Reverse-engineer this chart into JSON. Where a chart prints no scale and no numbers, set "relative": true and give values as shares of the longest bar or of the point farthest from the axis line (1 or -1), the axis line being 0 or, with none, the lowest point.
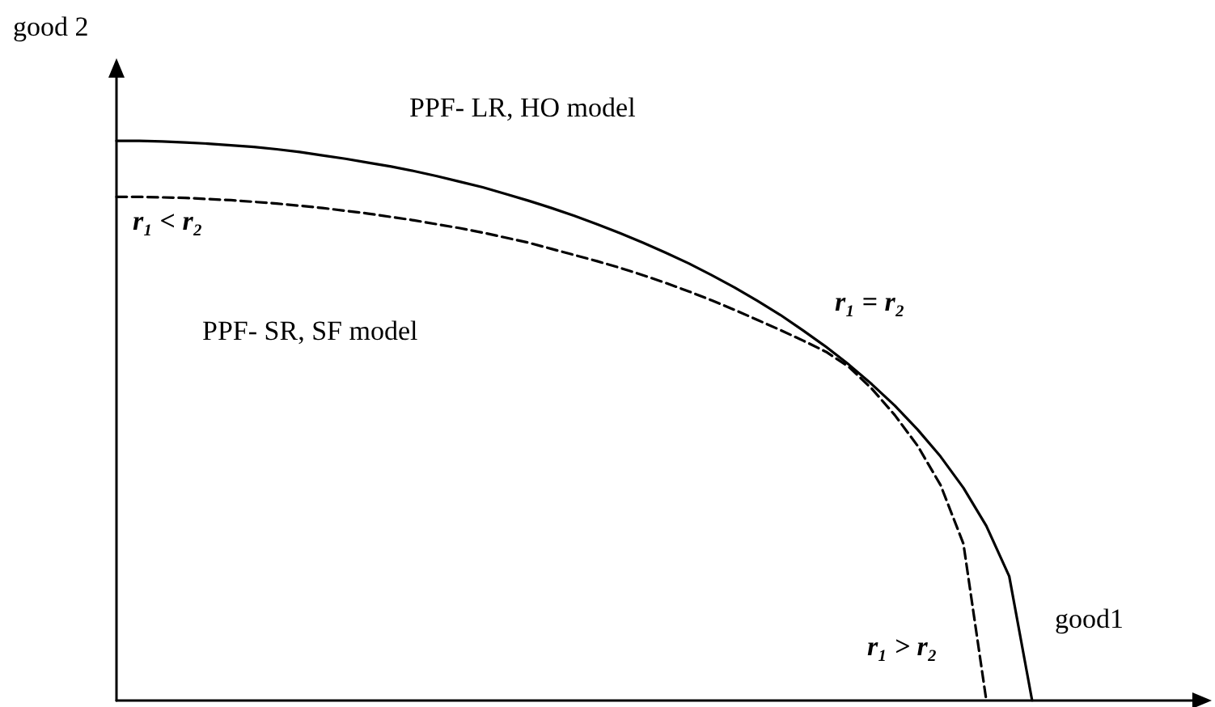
{
  "chart_data": {
    "type": "line",
    "relative": true,
    "xlabel": "good1",
    "ylabel": "good 2",
    "tick_labels": false,
    "marker": "none",
    "grid": false,
    "categories": [
      null,
      null,
      null,
      null,
      null,
      null,
      null,
      null,
      null,
      null,
      null,
      null,
      null,
      null,
      null,
      null,
      null,
      null,
      null,
      null,
      null,
      null,
      null,
      null,
      null,
      null,
      null,
      null,
      null,
      null,
      null,
      null,
      null,
      null,
      null,
      null,
      null,
      null,
      null,
      null,
      null,
      null,
      null,
      null,
      null,
      null,
      null,
      null
    ],
    "series": [
      {
        "color": "#000000",
        "line_style": "solid",
        "values": [
          1,
          1,
          0.999,
          0.997,
          0.995,
          0.992,
          0.989,
          0.985,
          0.98,
          0.974,
          0.968,
          0.961,
          0.954,
          0.946,
          0.937,
          0.927,
          0.917,
          0.905,
          0.893,
          0.88,
          0.866,
          0.851,
          0.835,
          0.818,
          0.8,
          0.781,
          0.76,
          0.738,
          0.714,
          0.689,
          0.661,
          0.632,
          0.6,
          0.565,
          0.527,
          0.484,
          0.436,
          0.38,
          0.312,
          0.222,
          0,
          null,
          null,
          null,
          null,
          null,
          null,
          null
        ]
      },
      {
        "color": "#000000",
        "line_style": "dashed",
        "values": [
          0.9,
          0.9,
          0.899,
          0.898,
          0.896,
          0.894,
          0.891,
          0.888,
          0.884,
          0.88,
          0.875,
          0.87,
          0.864,
          0.858,
          0.851,
          0.844,
          0.836,
          0.827,
          0.818,
          0.807,
          0.796,
          0.785,
          0.773,
          0.76,
          0.746,
          0.731,
          0.715,
          0.698,
          0.68,
          0.662,
          0.643,
          0.623,
          0.596,
          0.557,
          0.51,
          0.455,
          0.385,
          0.28,
          0,
          null,
          null,
          null,
          null,
          null,
          null,
          null,
          null,
          null
        ]
      }
    ],
    "annotations": [
      "PPF- LR, HO model",
      "PPF- SR, SF model",
      "r₁ < r₂",
      "r₁ = r₂",
      "r₁ > r₂"
    ]
  }
}
